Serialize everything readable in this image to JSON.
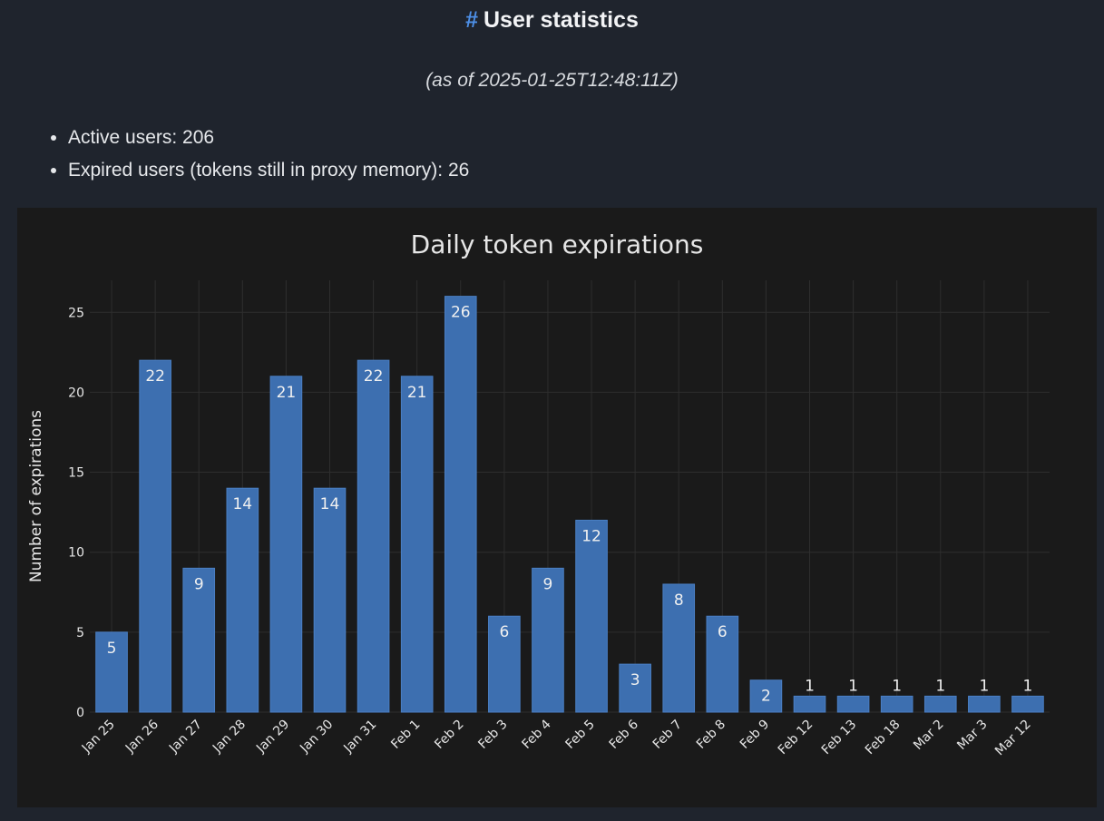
{
  "header": {
    "hash": "#",
    "title": "User statistics",
    "as_of": "(as of 2025-01-25T12:48:11Z)"
  },
  "stats": {
    "active": "Active users: 206",
    "expired": "Expired users (tokens still in proxy memory): 26"
  },
  "colors": {
    "bar": "#3d6fb0",
    "bar_edge": "#4a7fc4",
    "grid": "#2e2e2e",
    "text": "#e6e6e6",
    "hash": "#4d8fe6"
  },
  "chart_data": {
    "type": "bar",
    "title": "Daily token expirations",
    "xlabel": "",
    "ylabel": "Number of expirations",
    "ylim": [
      0,
      27
    ],
    "yticks": [
      0,
      5,
      10,
      15,
      20,
      25
    ],
    "grid": true,
    "categories": [
      "Jan 25",
      "Jan 26",
      "Jan 27",
      "Jan 28",
      "Jan 29",
      "Jan 30",
      "Jan 31",
      "Feb 1",
      "Feb 2",
      "Feb 3",
      "Feb 4",
      "Feb 5",
      "Feb 6",
      "Feb 7",
      "Feb 8",
      "Feb 9",
      "Feb 12",
      "Feb 13",
      "Feb 18",
      "Mar 2",
      "Mar 3",
      "Mar 12"
    ],
    "values": [
      5,
      22,
      9,
      14,
      21,
      14,
      22,
      21,
      26,
      6,
      9,
      12,
      3,
      8,
      6,
      2,
      1,
      1,
      1,
      1,
      1,
      1
    ]
  }
}
